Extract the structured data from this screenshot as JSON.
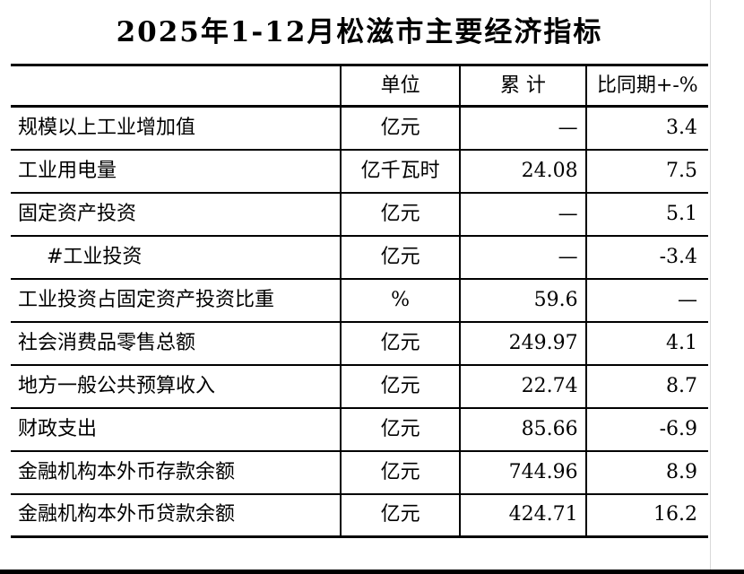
{
  "page": {
    "title": "2025年1-12月松滋市主要经济指标"
  },
  "table": {
    "columns": [
      {
        "label": ""
      },
      {
        "label": "单位"
      },
      {
        "label": "累 计"
      },
      {
        "label": "比同期+-%"
      }
    ],
    "empty_value": "—",
    "rows": [
      {
        "indicator": "规模以上工业增加值",
        "unit": "亿元",
        "total": "—",
        "yoy": "3.4",
        "indent": false
      },
      {
        "indicator": "工业用电量",
        "unit": "亿千瓦时",
        "total": "24.08",
        "yoy": "7.5",
        "indent": false
      },
      {
        "indicator": "固定资产投资",
        "unit": "亿元",
        "total": "—",
        "yoy": "5.1",
        "indent": false
      },
      {
        "indicator": "#工业投资",
        "unit": "亿元",
        "total": "—",
        "yoy": "-3.4",
        "indent": true
      },
      {
        "indicator": "工业投资占固定资产投资比重",
        "unit": "%",
        "total": "59.6",
        "yoy": "—",
        "indent": false
      },
      {
        "indicator": "社会消费品零售总额",
        "unit": "亿元",
        "total": "249.97",
        "yoy": "4.1",
        "indent": false
      },
      {
        "indicator": "地方一般公共预算收入",
        "unit": "亿元",
        "total": "22.74",
        "yoy": "8.7",
        "indent": false
      },
      {
        "indicator": "财政支出",
        "unit": "亿元",
        "total": "85.66",
        "yoy": "-6.9",
        "indent": false
      },
      {
        "indicator": "金融机构本外币存款余额",
        "unit": "亿元",
        "total": "744.96",
        "yoy": "8.9",
        "indent": false
      },
      {
        "indicator": "金融机构本外币贷款余额",
        "unit": "亿元",
        "total": "424.71",
        "yoy": "16.2",
        "indent": false
      }
    ]
  },
  "colors": {
    "background": "#ffffff",
    "text": "#000000",
    "table_lines": "#000000",
    "page_edge": "#d9d9d9",
    "bottom_bar": "#000000"
  }
}
